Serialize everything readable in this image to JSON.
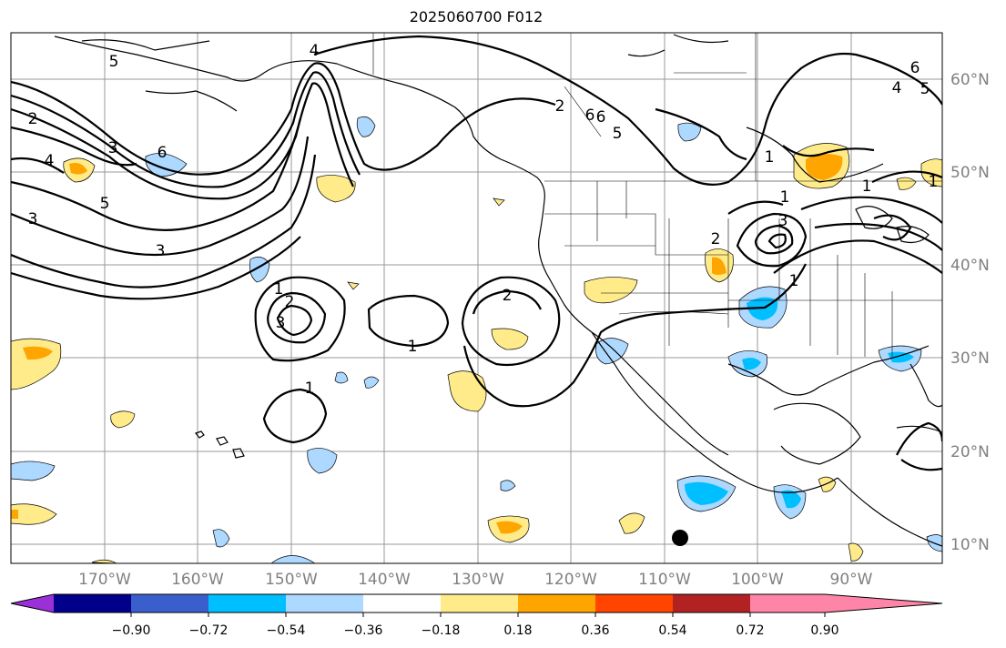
{
  "title": "2025060700 F012",
  "lat_labels": [
    "60°N",
    "50°N",
    "40°N",
    "30°N",
    "20°N",
    "10°N"
  ],
  "lon_labels": [
    "170°W",
    "160°W",
    "150°W",
    "140°W",
    "130°W",
    "120°W",
    "110°W",
    "100°W",
    "90°W"
  ],
  "colorbar": {
    "labels": [
      "−0.90",
      "−0.72",
      "−0.54",
      "−0.36",
      "−0.18",
      "0.18",
      "0.36",
      "0.54",
      "0.72",
      "0.90"
    ],
    "colors": [
      "#9b30d9",
      "#00008b",
      "#3a5fcd",
      "#00bfff",
      "#add8ff",
      "#ffffff",
      "#ffeb8a",
      "#ffa500",
      "#ff4500",
      "#b22222",
      "#ff85a8"
    ]
  },
  "contour_labels": [
    "5",
    "4",
    "6",
    "3",
    "2",
    "4",
    "3",
    "6",
    "5",
    "3",
    "1",
    "2",
    "3",
    "1",
    "1",
    "2",
    "2",
    "6",
    "5",
    "2",
    "1",
    "1",
    "3",
    "1",
    "1",
    "4",
    "5",
    "6",
    "1"
  ],
  "colors": {
    "land_line": "#000000",
    "grid": "#999999",
    "contour": "#000000",
    "pos_light": "#ffeb8a",
    "pos_dark": "#ffa500",
    "neg_light": "#add8ff",
    "neg_dark": "#00bfff"
  }
}
